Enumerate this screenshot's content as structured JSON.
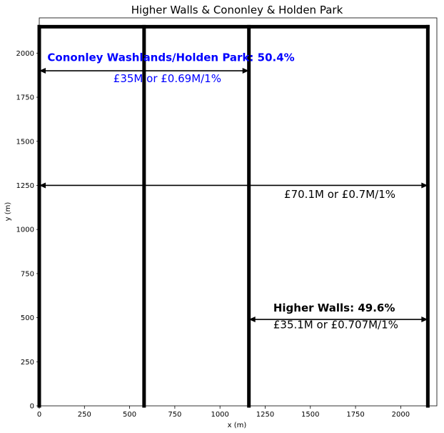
{
  "chart_data": {
    "type": "line",
    "title": "Higher Walls & Cononley & Holden Park",
    "xlabel": "x (m)",
    "ylabel": "y (m)",
    "xlim": [
      0,
      2200
    ],
    "ylim": [
      0,
      2200
    ],
    "xticks": [
      0,
      250,
      500,
      750,
      1000,
      1250,
      1500,
      1750,
      2000
    ],
    "yticks": [
      0,
      250,
      500,
      750,
      1000,
      1250,
      1500,
      1750,
      2000
    ],
    "grid": false,
    "walls": [
      {
        "x": [
          0,
          2150
        ],
        "y": [
          2150,
          2150
        ]
      },
      {
        "x": [
          0,
          0
        ],
        "y": [
          0,
          2150
        ]
      },
      {
        "x": [
          580,
          580
        ],
        "y": [
          0,
          2150
        ]
      },
      {
        "x": [
          1160,
          1160
        ],
        "y": [
          0,
          2150
        ]
      },
      {
        "x": [
          2150,
          2150
        ],
        "y": [
          0,
          2150
        ]
      }
    ],
    "arrows": [
      {
        "x": [
          0,
          1160
        ],
        "y": [
          1900,
          1900
        ]
      },
      {
        "x": [
          0,
          2150
        ],
        "y": [
          1250,
          1250
        ]
      },
      {
        "x": [
          1160,
          2150
        ],
        "y": [
          490,
          490
        ]
      }
    ],
    "annotations": [
      {
        "text": "Cononley Washlands/Holden Park: 50.4%",
        "x": 45,
        "y": 1955,
        "color": "#0000ff",
        "bold": true
      },
      {
        "text": "£35M or £0.69M/1%",
        "x": 410,
        "y": 1835,
        "color": "#0000ff",
        "bold": false
      },
      {
        "text": "£70.1M or £0.7M/1%",
        "x": 1355,
        "y": 1180,
        "color": "#000000",
        "bold": false
      },
      {
        "text": "Higher Walls: 49.6%",
        "x": 1295,
        "y": 535,
        "color": "#000000",
        "bold": true
      },
      {
        "text": "£35.1M or £0.707M/1%",
        "x": 1295,
        "y": 440,
        "color": "#000000",
        "bold": false
      }
    ]
  }
}
